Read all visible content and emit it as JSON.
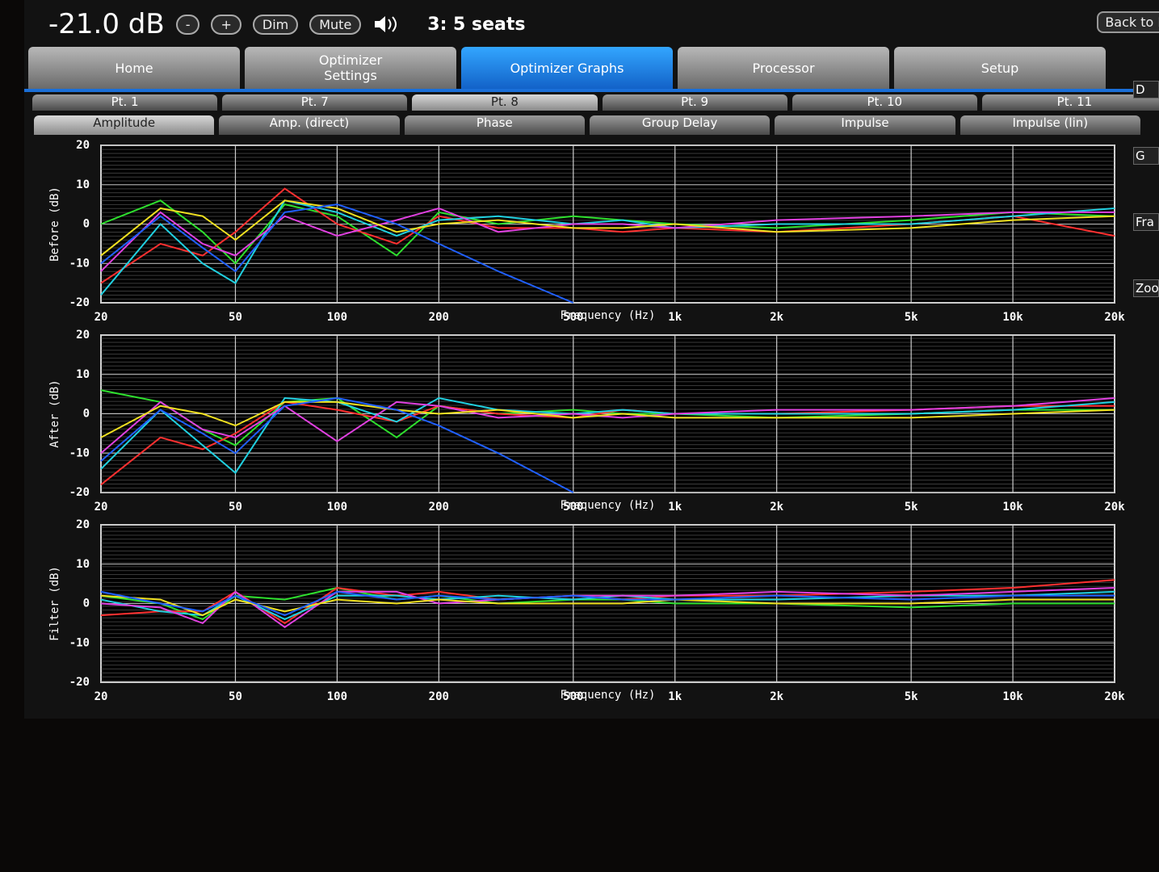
{
  "header": {
    "volume": "-21.0 dB",
    "buttons": [
      "-",
      "+",
      "Dim",
      "Mute"
    ],
    "preset": "3: 5 seats",
    "back": "Back to Ma"
  },
  "tabs": [
    "Home",
    "Optimizer Settings",
    "Optimizer Graphs",
    "Processor",
    "Setup"
  ],
  "active_tab": 2,
  "points": [
    "Pt. 1",
    "Pt. 7",
    "Pt. 8",
    "Pt. 9",
    "Pt. 10",
    "Pt. 11"
  ],
  "active_point": 2,
  "graph_tabs": [
    "Amplitude",
    "Amp. (direct)",
    "Phase",
    "Group Delay",
    "Impulse",
    "Impulse (lin)"
  ],
  "active_graph_tab": 0,
  "side_panel": [
    "D",
    "G",
    "Fra",
    "Zoo"
  ],
  "chart_data": [
    {
      "type": "line",
      "ylabel": "Before (dB)",
      "xlabel": "Frequency (Hz)",
      "xscale": "log",
      "grid": true,
      "x": [
        20,
        30,
        40,
        50,
        70,
        100,
        150,
        200,
        300,
        500,
        700,
        1000,
        2000,
        5000,
        10000,
        20000
      ],
      "xlim": [
        20,
        20000
      ],
      "xticks": [
        20,
        50,
        100,
        200,
        500,
        {
          "value": 1000,
          "label": "1k"
        },
        {
          "value": 2000,
          "label": "2k"
        },
        {
          "value": 5000,
          "label": "5k"
        },
        {
          "value": 10000,
          "label": "10k"
        },
        {
          "value": 20000,
          "label": "20k"
        }
      ],
      "ylim": [
        -20,
        20
      ],
      "yticks": [
        -20,
        -10,
        0,
        10,
        20
      ],
      "series": [
        {
          "color": "#2ee02e",
          "values": [
            0,
            6,
            -2,
            -10,
            5,
            2,
            -8,
            3,
            0,
            2,
            1,
            0,
            -1,
            1,
            3,
            2
          ]
        },
        {
          "color": "#ff3030",
          "values": [
            -15,
            -5,
            -8,
            -2,
            9,
            0,
            -5,
            2,
            -1,
            -1,
            -2,
            -1,
            -2,
            0,
            2,
            -3
          ]
        },
        {
          "color": "#20d0e0",
          "values": [
            -18,
            0,
            -10,
            -15,
            6,
            3,
            -3,
            1,
            2,
            0,
            1,
            -1,
            0,
            0,
            2,
            4
          ]
        },
        {
          "color": "#e040e0",
          "values": [
            -12,
            3,
            -5,
            -8,
            2,
            -3,
            1,
            4,
            -2,
            0,
            0,
            -1,
            1,
            2,
            3,
            3
          ]
        },
        {
          "color": "#f0e020",
          "values": [
            -8,
            4,
            2,
            -4,
            6,
            4,
            -2,
            0,
            1,
            -1,
            -1,
            0,
            -2,
            -1,
            1,
            2
          ]
        },
        {
          "color": "#2060ff",
          "values": [
            -10,
            2,
            -6,
            -12,
            3,
            5,
            0,
            -5,
            -12,
            -20,
            null,
            null,
            null,
            null,
            null,
            null
          ]
        }
      ]
    },
    {
      "type": "line",
      "ylabel": "After (dB)",
      "xlabel": "Frequency (Hz)",
      "xscale": "log",
      "grid": true,
      "x": [
        20,
        30,
        40,
        50,
        70,
        100,
        150,
        200,
        300,
        500,
        700,
        1000,
        2000,
        5000,
        10000,
        20000
      ],
      "xlim": [
        20,
        20000
      ],
      "xticks": [
        20,
        50,
        100,
        200,
        500,
        {
          "value": 1000,
          "label": "1k"
        },
        {
          "value": 2000,
          "label": "2k"
        },
        {
          "value": 5000,
          "label": "5k"
        },
        {
          "value": 10000,
          "label": "10k"
        },
        {
          "value": 20000,
          "label": "20k"
        }
      ],
      "ylim": [
        -20,
        20
      ],
      "yticks": [
        -20,
        -10,
        0,
        10,
        20
      ],
      "series": [
        {
          "color": "#2ee02e",
          "values": [
            6,
            3,
            -4,
            -8,
            3,
            4,
            -6,
            2,
            0,
            1,
            0,
            0,
            -1,
            0,
            1,
            1
          ]
        },
        {
          "color": "#ff3030",
          "values": [
            -18,
            -6,
            -9,
            -5,
            3,
            1,
            -2,
            2,
            0,
            -1,
            1,
            0,
            0,
            1,
            2,
            2
          ]
        },
        {
          "color": "#20d0e0",
          "values": [
            -14,
            1,
            -8,
            -15,
            4,
            3,
            -2,
            4,
            1,
            0,
            1,
            0,
            0,
            0,
            1,
            3
          ]
        },
        {
          "color": "#e040e0",
          "values": [
            -10,
            3,
            -4,
            -6,
            2,
            -7,
            3,
            2,
            -1,
            0,
            -1,
            0,
            1,
            1,
            2,
            4
          ]
        },
        {
          "color": "#f0e020",
          "values": [
            -6,
            2,
            0,
            -3,
            3,
            3,
            1,
            0,
            1,
            -1,
            0,
            -1,
            -1,
            -1,
            0,
            1
          ]
        },
        {
          "color": "#2060ff",
          "values": [
            -12,
            1,
            -5,
            -10,
            2,
            4,
            1,
            -3,
            -10,
            -20,
            null,
            null,
            null,
            null,
            null,
            null
          ]
        }
      ]
    },
    {
      "type": "line",
      "ylabel": "Filter (dB)",
      "xlabel": "Frequency (Hz)",
      "xscale": "log",
      "grid": true,
      "x": [
        20,
        30,
        40,
        50,
        70,
        100,
        150,
        200,
        300,
        500,
        700,
        1000,
        2000,
        5000,
        10000,
        20000
      ],
      "xlim": [
        20,
        20000
      ],
      "xticks": [
        20,
        50,
        100,
        200,
        500,
        {
          "value": 1000,
          "label": "1k"
        },
        {
          "value": 2000,
          "label": "2k"
        },
        {
          "value": 5000,
          "label": "5k"
        },
        {
          "value": 10000,
          "label": "10k"
        },
        {
          "value": 20000,
          "label": "20k"
        }
      ],
      "ylim": [
        -20,
        20
      ],
      "yticks": [
        -20,
        -10,
        0,
        10,
        20
      ],
      "series": [
        {
          "color": "#2ee02e",
          "values": [
            2,
            0,
            -4,
            2,
            1,
            4,
            1,
            2,
            0,
            1,
            1,
            0,
            0,
            -1,
            0,
            0
          ]
        },
        {
          "color": "#ff3030",
          "values": [
            -3,
            -2,
            -2,
            3,
            -5,
            4,
            2,
            3,
            1,
            2,
            1,
            2,
            2,
            3,
            4,
            6
          ]
        },
        {
          "color": "#20d0e0",
          "values": [
            1,
            -2,
            -3,
            2,
            -4,
            2,
            2,
            1,
            2,
            1,
            2,
            1,
            1,
            2,
            2,
            3
          ]
        },
        {
          "color": "#e040e0",
          "values": [
            0,
            -1,
            -5,
            3,
            -6,
            3,
            3,
            0,
            1,
            2,
            2,
            2,
            3,
            2,
            3,
            4
          ]
        },
        {
          "color": "#f0e020",
          "values": [
            2,
            1,
            -3,
            1,
            -2,
            1,
            0,
            1,
            0,
            0,
            0,
            1,
            0,
            0,
            1,
            1
          ]
        },
        {
          "color": "#2060ff",
          "values": [
            3,
            0,
            -2,
            2,
            -3,
            3,
            1,
            2,
            1,
            2,
            1,
            1,
            2,
            1,
            2,
            2
          ]
        }
      ]
    }
  ]
}
